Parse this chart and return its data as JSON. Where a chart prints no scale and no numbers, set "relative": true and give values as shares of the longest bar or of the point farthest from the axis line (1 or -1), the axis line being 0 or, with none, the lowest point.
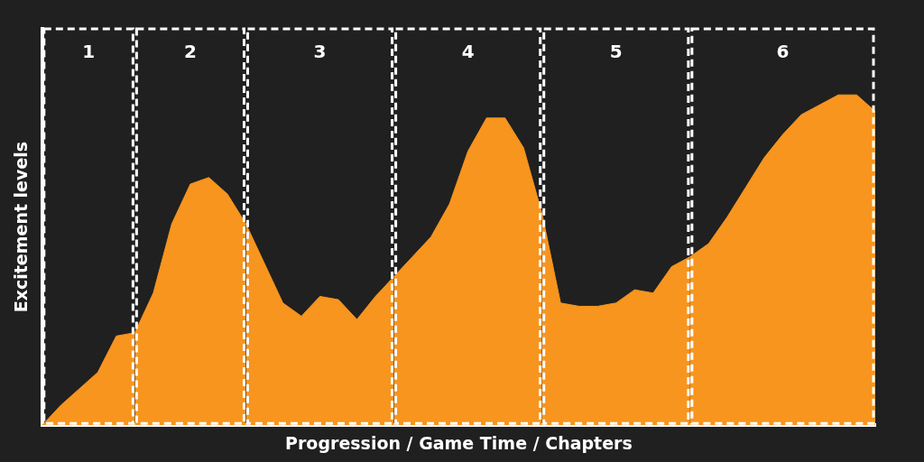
{
  "chart_data": {
    "type": "area",
    "relative": true,
    "xlabel": "Progression / Game Time / Chapters",
    "ylabel": "Excitement levels",
    "annotations": [
      "1",
      "2",
      "3",
      "4",
      "5",
      "6"
    ],
    "tick_labels": false,
    "grid": false,
    "legend": false,
    "marker": "none",
    "categories": [
      null,
      null,
      null,
      null,
      null,
      null,
      null,
      null,
      null,
      null,
      null,
      null,
      null,
      null,
      null,
      null,
      null,
      null,
      null,
      null,
      null,
      null,
      null,
      null,
      null,
      null,
      null,
      null,
      null,
      null,
      null,
      null,
      null,
      null,
      null,
      null,
      null,
      null,
      null,
      null,
      null,
      null,
      null,
      null,
      null,
      null
    ],
    "series": [
      {
        "color": "#f7951f",
        "values": [
          0,
          0.06,
          0.11,
          0.16,
          0.27,
          0.28,
          null,
          null,
          null,
          null,
          null,
          null,
          null,
          null,
          null,
          null,
          null,
          null,
          null,
          null,
          null,
          null,
          null,
          null,
          null,
          null,
          null,
          null,
          null,
          null,
          null,
          null,
          null,
          null,
          null,
          null,
          null,
          null,
          null,
          null,
          null,
          null,
          null,
          null,
          null,
          null
        ]
      },
      {
        "color": "#f7951f",
        "values": [
          null,
          null,
          null,
          null,
          null,
          0.28,
          0.4,
          0.61,
          0.73,
          0.75,
          0.7,
          0.61,
          null,
          null,
          null,
          null,
          null,
          null,
          null,
          null,
          null,
          null,
          null,
          null,
          null,
          null,
          null,
          null,
          null,
          null,
          null,
          null,
          null,
          null,
          null,
          null,
          null,
          null,
          null,
          null,
          null,
          null,
          null,
          null,
          null,
          null
        ]
      },
      {
        "color": "#f7951f",
        "values": [
          null,
          null,
          null,
          null,
          null,
          null,
          null,
          null,
          null,
          null,
          null,
          0.61,
          0.49,
          0.37,
          0.33,
          0.39,
          0.38,
          0.32,
          0.39,
          0.45,
          null,
          null,
          null,
          null,
          null,
          null,
          null,
          null,
          null,
          null,
          null,
          null,
          null,
          null,
          null,
          null,
          null,
          null,
          null,
          null,
          null,
          null,
          null,
          null,
          null,
          null
        ]
      },
      {
        "color": "#f7951f",
        "values": [
          null,
          null,
          null,
          null,
          null,
          null,
          null,
          null,
          null,
          null,
          null,
          null,
          null,
          null,
          null,
          null,
          null,
          null,
          null,
          0.45,
          0.51,
          0.57,
          0.67,
          0.83,
          0.93,
          0.93,
          0.84,
          0.64,
          null,
          null,
          null,
          null,
          null,
          null,
          null,
          null,
          null,
          null,
          null,
          null,
          null,
          null,
          null,
          null,
          null,
          null
        ]
      },
      {
        "color": "#f7951f",
        "values": [
          null,
          null,
          null,
          null,
          null,
          null,
          null,
          null,
          null,
          null,
          null,
          null,
          null,
          null,
          null,
          null,
          null,
          null,
          null,
          null,
          null,
          null,
          null,
          null,
          null,
          null,
          null,
          0.64,
          0.37,
          0.36,
          0.36,
          0.37,
          0.41,
          0.4,
          0.48,
          0.51,
          null,
          null,
          null,
          null,
          null,
          null,
          null,
          null,
          null,
          null
        ]
      },
      {
        "color": "#f7951f",
        "values": [
          null,
          null,
          null,
          null,
          null,
          null,
          null,
          null,
          null,
          null,
          null,
          null,
          null,
          null,
          null,
          null,
          null,
          null,
          null,
          null,
          null,
          null,
          null,
          null,
          null,
          null,
          null,
          null,
          null,
          null,
          null,
          null,
          null,
          null,
          null,
          0.51,
          0.55,
          0.63,
          0.72,
          0.81,
          0.88,
          0.94,
          0.97,
          1,
          1,
          0.95
        ]
      }
    ]
  }
}
